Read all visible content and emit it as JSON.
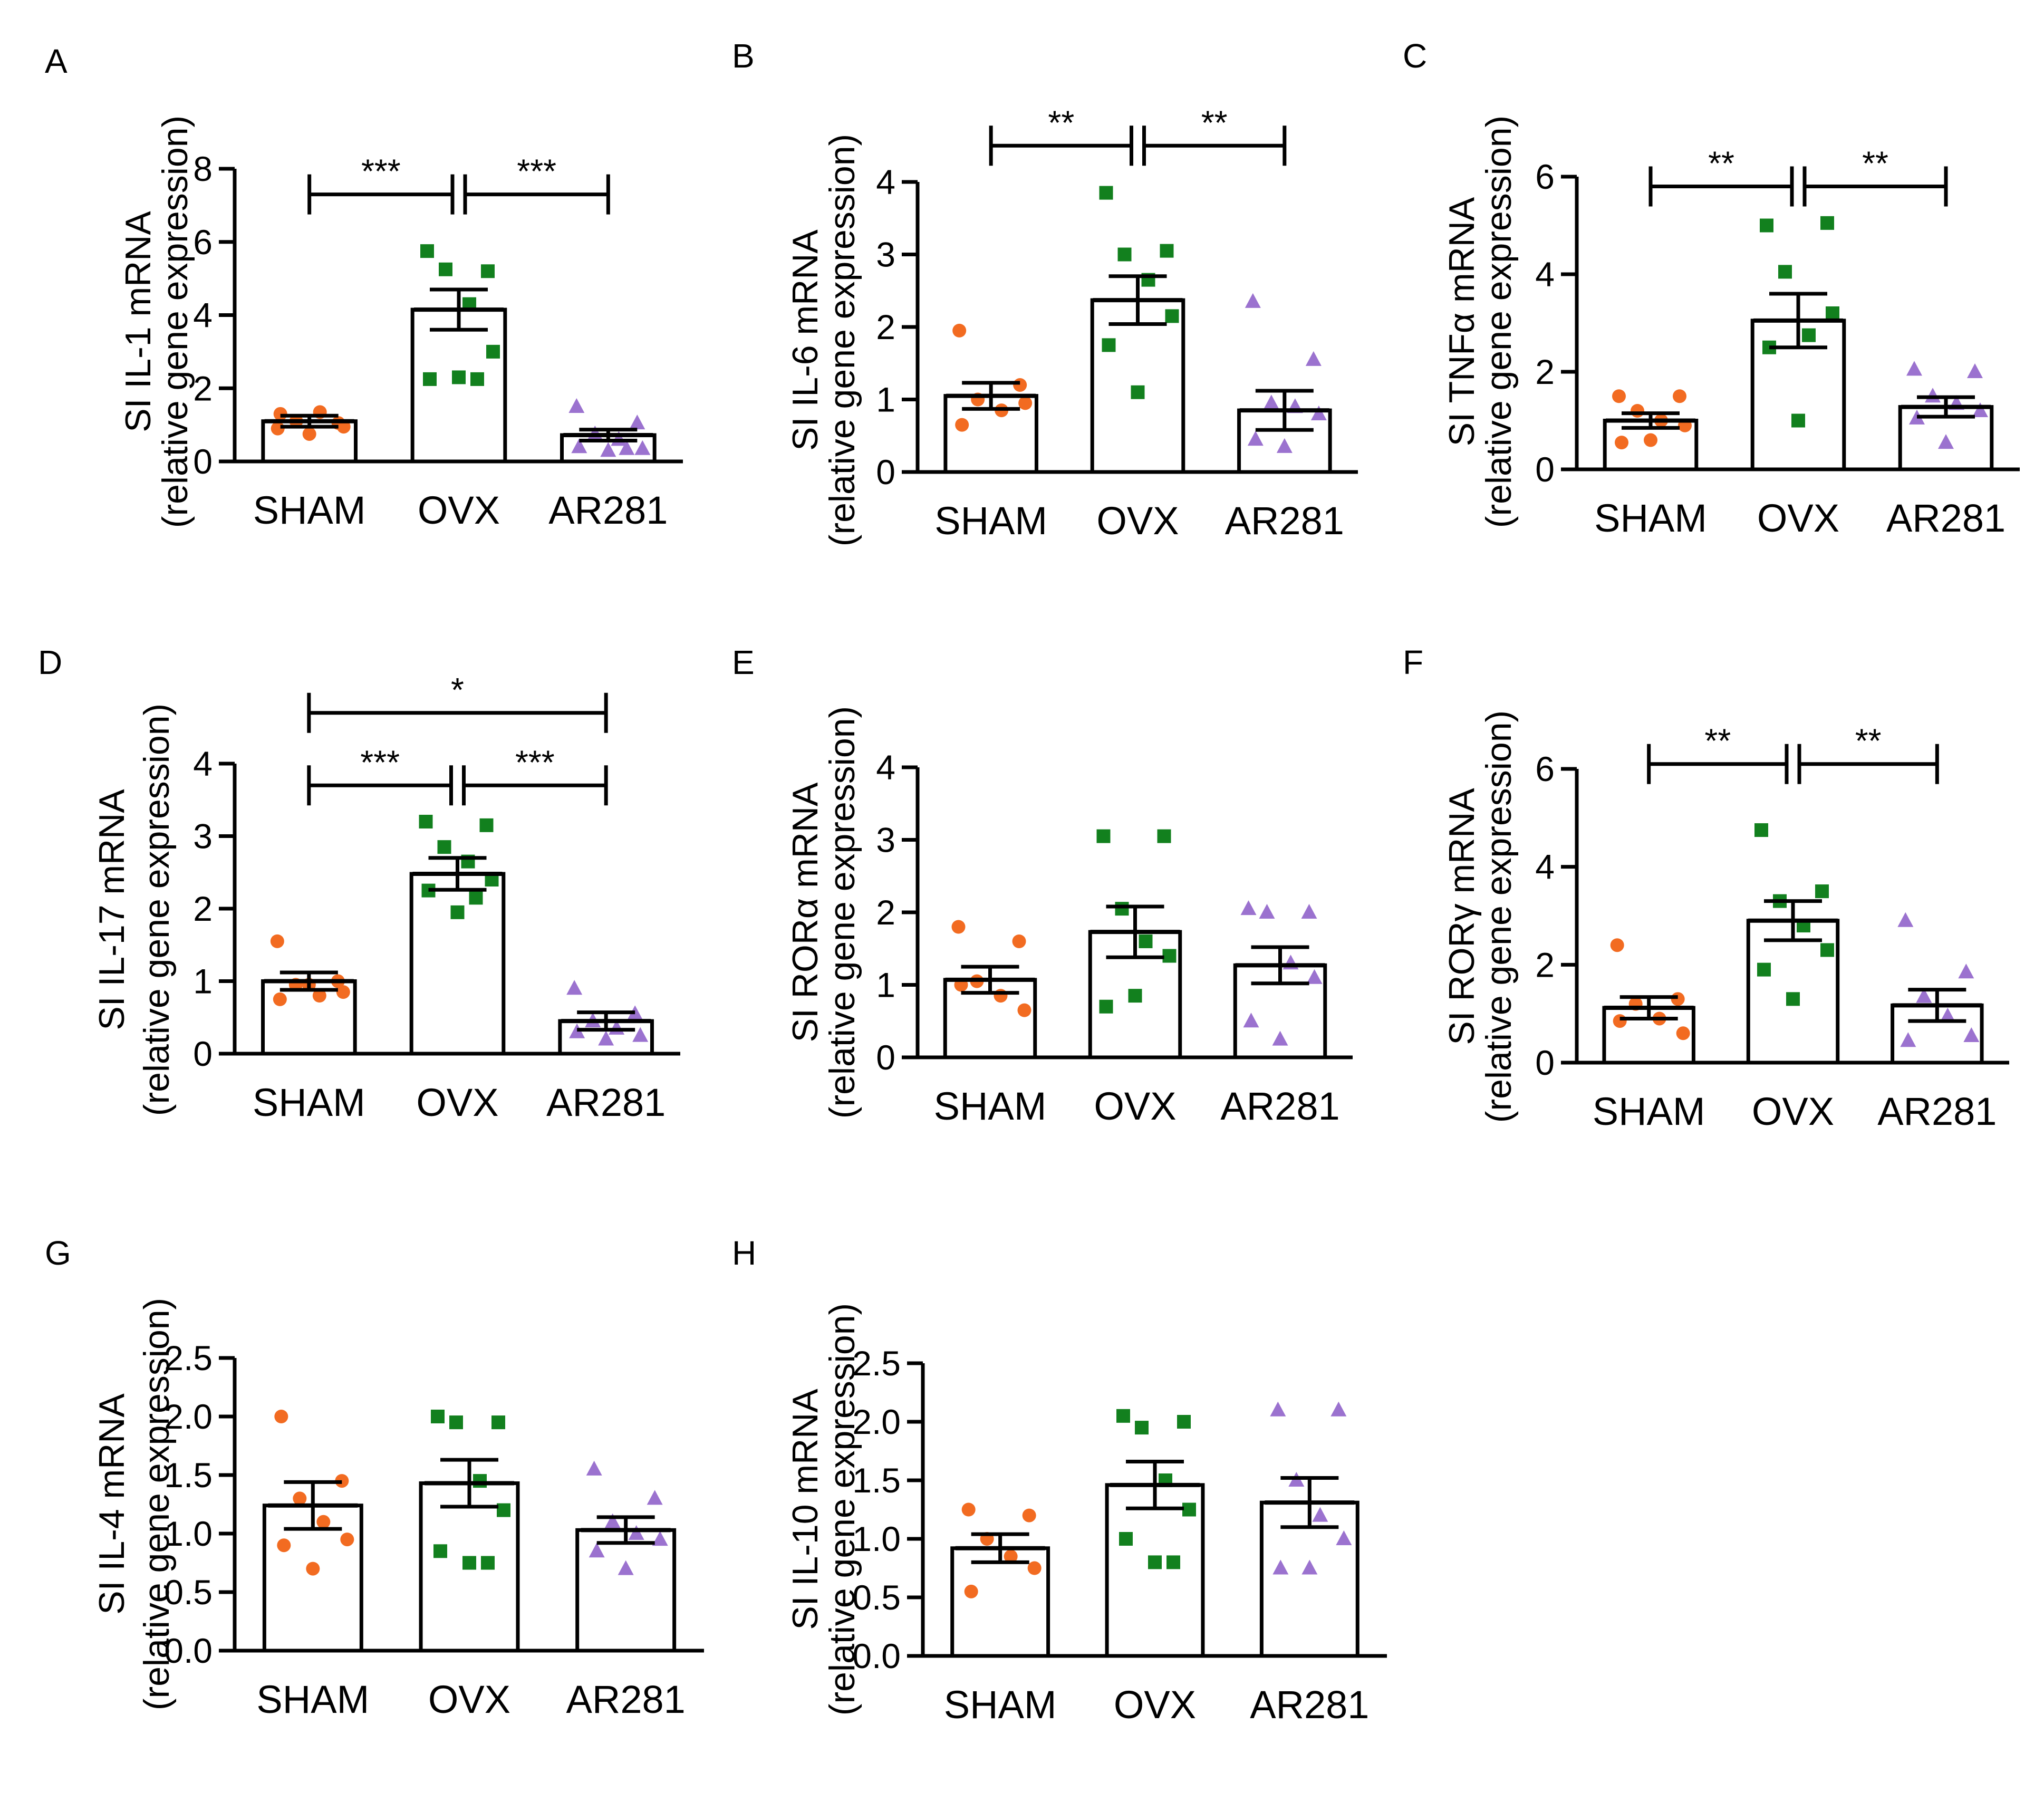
{
  "colors": {
    "SHAM": "#f26b21",
    "OVX": "#12801e",
    "AR281": "#9b72cf",
    "axis": "#000000",
    "bar_fill": "#ffffff"
  },
  "marker_shapes": {
    "SHAM": "circle",
    "OVX": "square",
    "AR281": "triangle"
  },
  "chart_data": [
    {
      "panel": "A",
      "type": "bar",
      "ylabel_line1": "SI IL-1 mRNA",
      "ylabel_line2": "(relative gene expression)",
      "categories": [
        "SHAM",
        "OVX",
        "AR281"
      ],
      "means": [
        1.1,
        4.15,
        0.72
      ],
      "sem": [
        0.15,
        0.55,
        0.15
      ],
      "ylim": [
        0,
        8
      ],
      "yticks": [
        "0",
        "2",
        "4",
        "6",
        "8"
      ],
      "points": [
        [
          0.9,
          1.05,
          1.1,
          1.35,
          0.95,
          1.3,
          0.75
        ],
        [
          5.75,
          5.2,
          5.25,
          4.3,
          3.0,
          2.25,
          2.3,
          2.25
        ],
        [
          1.5,
          1.05,
          0.75,
          0.6,
          0.35,
          0.4,
          0.3,
          0.35
        ]
      ],
      "brackets": [
        {
          "from": 0,
          "to": 1,
          "y": 7.3,
          "label": "***"
        },
        {
          "from": 1,
          "to": 2,
          "y": 7.3,
          "label": "***"
        }
      ]
    },
    {
      "panel": "B",
      "type": "bar",
      "ylabel_line1": "SI IL-6 mRNA",
      "ylabel_line2": "(relative gene expression)",
      "categories": [
        "SHAM",
        "OVX",
        "AR281"
      ],
      "means": [
        1.05,
        2.37,
        0.85
      ],
      "sem": [
        0.18,
        0.33,
        0.27
      ],
      "ylim": [
        0,
        4
      ],
      "yticks": [
        "0",
        "1",
        "2",
        "3",
        "4"
      ],
      "points": [
        [
          1.95,
          1.2,
          1.0,
          0.85,
          0.95,
          0.65
        ],
        [
          3.85,
          3.05,
          3.0,
          2.65,
          2.15,
          1.75,
          1.1
        ],
        [
          2.35,
          1.55,
          0.95,
          0.9,
          0.8,
          0.45,
          0.35
        ]
      ],
      "brackets": [
        {
          "from": 0,
          "to": 1,
          "y": 4.5,
          "label": "**"
        },
        {
          "from": 1,
          "to": 2,
          "y": 4.5,
          "label": "**"
        }
      ]
    },
    {
      "panel": "C",
      "type": "bar",
      "ylabel_line1": "SI TNFα mRNA",
      "ylabel_line2": "(relative gene expression)",
      "categories": [
        "SHAM",
        "OVX",
        "AR281"
      ],
      "means": [
        1.0,
        3.05,
        1.28
      ],
      "sem": [
        0.15,
        0.55,
        0.2
      ],
      "ylim": [
        0,
        6
      ],
      "yticks": [
        "0",
        "2",
        "4",
        "6"
      ],
      "points": [
        [
          1.5,
          1.5,
          1.2,
          1.0,
          0.9,
          0.55,
          0.6
        ],
        [
          5.0,
          5.05,
          4.05,
          2.75,
          3.2,
          2.5,
          1.0
        ],
        [
          2.05,
          2.0,
          1.5,
          1.35,
          1.2,
          1.05,
          0.55
        ]
      ],
      "brackets": [
        {
          "from": 0,
          "to": 1,
          "y": 5.8,
          "label": "**"
        },
        {
          "from": 1,
          "to": 2,
          "y": 5.8,
          "label": "**"
        }
      ]
    },
    {
      "panel": "D",
      "type": "bar",
      "ylabel_line1": "SI IL-17 mRNA",
      "ylabel_line2": "(relative gene expression)",
      "categories": [
        "SHAM",
        "OVX",
        "AR281"
      ],
      "means": [
        1.0,
        2.48,
        0.45
      ],
      "sem": [
        0.12,
        0.22,
        0.12
      ],
      "ylim": [
        0,
        4
      ],
      "yticks": [
        "0",
        "1",
        "2",
        "3",
        "4"
      ],
      "points": [
        [
          1.55,
          1.0,
          0.95,
          0.8,
          0.85,
          0.75,
          0.95
        ],
        [
          3.2,
          3.15,
          2.85,
          2.65,
          2.4,
          2.25,
          1.95,
          2.15
        ],
        [
          0.9,
          0.55,
          0.45,
          0.35,
          0.25,
          0.3,
          0.2
        ]
      ],
      "brackets": [
        {
          "from": 0,
          "to": 2,
          "y": 4.7,
          "label": "*"
        },
        {
          "from": 0,
          "to": 1,
          "y": 3.7,
          "label": "***"
        },
        {
          "from": 1,
          "to": 2,
          "y": 3.7,
          "label": "***"
        }
      ]
    },
    {
      "panel": "E",
      "type": "bar",
      "ylabel_line1": "SI RORα mRNA",
      "ylabel_line2": "(relative gene expression)",
      "categories": [
        "SHAM",
        "OVX",
        "AR281"
      ],
      "means": [
        1.07,
        1.73,
        1.27
      ],
      "sem": [
        0.18,
        0.35,
        0.25
      ],
      "ylim": [
        0,
        4
      ],
      "yticks": [
        "0",
        "1",
        "2",
        "3",
        "4"
      ],
      "points": [
        [
          1.8,
          1.6,
          1.05,
          0.85,
          0.65,
          1.0
        ],
        [
          3.05,
          3.05,
          2.05,
          1.6,
          1.4,
          0.7,
          0.85
        ],
        [
          2.05,
          2.0,
          2.0,
          1.3,
          1.1,
          0.5,
          0.25
        ]
      ],
      "brackets": []
    },
    {
      "panel": "F",
      "type": "bar",
      "ylabel_line1": "SI RORγ mRNA",
      "ylabel_line2": "(relative gene expression)",
      "categories": [
        "SHAM",
        "OVX",
        "AR281"
      ],
      "means": [
        1.12,
        2.9,
        1.17
      ],
      "sem": [
        0.22,
        0.4,
        0.32
      ],
      "ylim": [
        0,
        6
      ],
      "yticks": [
        "0",
        "2",
        "4",
        "6"
      ],
      "points": [
        [
          2.4,
          1.3,
          1.2,
          0.9,
          0.6,
          0.85
        ],
        [
          4.75,
          3.5,
          3.3,
          2.8,
          2.3,
          1.9,
          1.3
        ],
        [
          2.9,
          1.85,
          1.35,
          0.95,
          0.55,
          0.45
        ]
      ],
      "brackets": [
        {
          "from": 0,
          "to": 1,
          "y": 6.1,
          "label": "**"
        },
        {
          "from": 1,
          "to": 2,
          "y": 6.1,
          "label": "**"
        }
      ]
    },
    {
      "panel": "G",
      "type": "bar",
      "ylabel_line1": "SI IL-4 mRNA",
      "ylabel_line2": "(relative gene expression)",
      "categories": [
        "SHAM",
        "OVX",
        "AR281"
      ],
      "means": [
        1.24,
        1.43,
        1.03
      ],
      "sem": [
        0.2,
        0.2,
        0.11
      ],
      "ylim": [
        0,
        2.5
      ],
      "yticks": [
        "0.0",
        "0.5",
        "1.0",
        "1.5",
        "2.0",
        "2.5"
      ],
      "points": [
        [
          2.0,
          1.45,
          1.3,
          1.1,
          0.95,
          0.9,
          0.7
        ],
        [
          2.0,
          1.95,
          1.95,
          1.45,
          1.2,
          0.85,
          0.75,
          0.75
        ],
        [
          1.55,
          1.3,
          1.1,
          1.0,
          0.95,
          0.85,
          0.7
        ]
      ],
      "brackets": []
    },
    {
      "panel": "H",
      "type": "bar",
      "ylabel_line1": "SI IL-10 mRNA",
      "ylabel_line2": "(relative gene expression)",
      "categories": [
        "SHAM",
        "OVX",
        "AR281"
      ],
      "means": [
        0.92,
        1.46,
        1.31
      ],
      "sem": [
        0.12,
        0.2,
        0.21
      ],
      "ylim": [
        0,
        2.5
      ],
      "yticks": [
        "0.0",
        "0.5",
        "1.0",
        "1.5",
        "2.0",
        "2.5"
      ],
      "points": [
        [
          1.25,
          1.2,
          1.0,
          0.85,
          0.75,
          0.55
        ],
        [
          2.05,
          2.0,
          1.95,
          1.5,
          1.25,
          1.0,
          0.8,
          0.8
        ],
        [
          2.1,
          2.1,
          1.5,
          1.2,
          1.0,
          0.75,
          0.75
        ]
      ],
      "brackets": []
    }
  ]
}
